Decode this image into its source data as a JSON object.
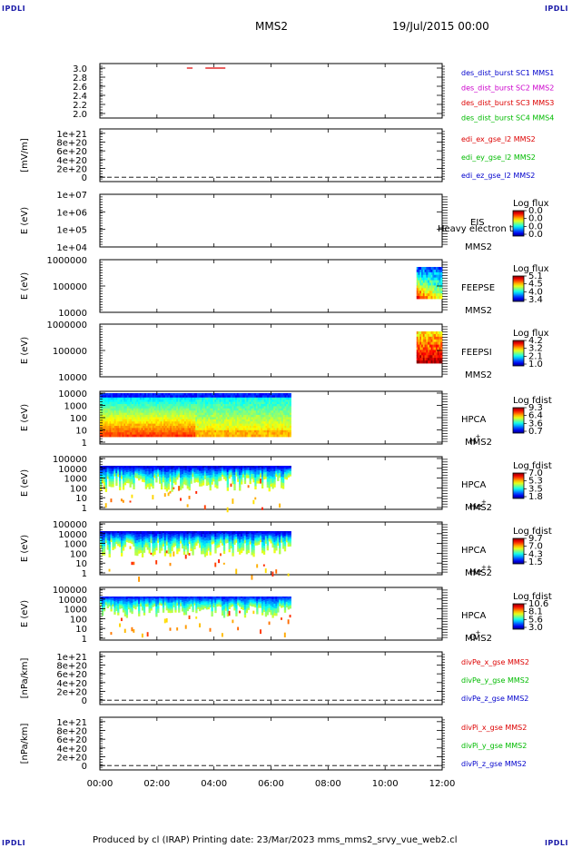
{
  "corners": {
    "tl": "IPDLI",
    "tr": "IPDLI",
    "bl": "IPDLI",
    "br": "IPDLI"
  },
  "header": {
    "title": "MMS2",
    "date": "19/Jul/2015 00:00"
  },
  "footer": {
    "text": "Produced by cl (IRAP)    Printing date: 23/Mar/2023    mms_mms2_srvy_vue_web2.cl"
  },
  "x_axis": {
    "ticks": [
      "00:00",
      "02:00",
      "04:00",
      "06:00",
      "08:00",
      "10:00",
      "12:00"
    ],
    "range_hours": [
      0,
      12
    ]
  },
  "chart_data": [
    {
      "type": "line",
      "id": "p1",
      "yticks": [
        "3.0",
        "2.8",
        "2.6",
        "2.4",
        "2.2",
        "2.0"
      ],
      "ylim": [
        1.9,
        3.1
      ],
      "ylabel": "",
      "legend": [
        {
          "text": "des_dist_burst SC1 MMS1",
          "color": "#0000cc"
        },
        {
          "text": "des_dist_burst SC2 MMS2",
          "color": "#cc00cc"
        },
        {
          "text": "des_dist_burst SC3 MMS3",
          "color": "#dd0000"
        },
        {
          "text": "des_dist_burst SC4 MMS4",
          "color": "#00bb00"
        }
      ],
      "segments": [
        {
          "x": [
            3.05,
            3.25
          ],
          "y": 3.0,
          "color": "#dd0000"
        },
        {
          "x": [
            3.7,
            4.4
          ],
          "y": 3.0,
          "color": "#dd0000"
        }
      ]
    },
    {
      "type": "line",
      "id": "p2",
      "ylabel": "[mV/m]",
      "yticks": [
        "1e+21",
        "8e+20",
        "6e+20",
        "4e+20",
        "2e+20",
        "0"
      ],
      "ylim": [
        -1e+20,
        1.1e+21
      ],
      "legend": [
        {
          "text": "edi_ex_gse_l2 MMS2",
          "color": "#dd0000"
        },
        {
          "text": "edi_ey_gse_l2 MMS2",
          "color": "#00bb00"
        },
        {
          "text": "edi_ez_gse_l2 MMS2",
          "color": "#0000cc"
        }
      ],
      "zero_line": true
    },
    {
      "type": "heatmap",
      "id": "p3",
      "ylabel": "E (eV)",
      "yticks": [
        "1e+07",
        "1e+06",
        "1e+05",
        "1e+04"
      ],
      "instrument": "EIS",
      "overlap_text": "Heavy electron to",
      "spacecraft": "MMS2",
      "cbar_title": "Log flux",
      "cbar_ticks": [
        "0.0",
        "0.0",
        "0.0",
        "0.0"
      ],
      "blocks": []
    },
    {
      "type": "heatmap",
      "id": "p4",
      "ylabel": "E (eV)",
      "yticks": [
        "1000000",
        "100000",
        "10000"
      ],
      "instrument": "FEEPSE",
      "spacecraft": "MMS2",
      "cbar_title": "Log flux",
      "cbar_ticks": [
        "5.1",
        "4.5",
        "4.0",
        "3.4"
      ],
      "blocks": [
        {
          "x": [
            11.1,
            12.0
          ],
          "kind": "feepse"
        }
      ]
    },
    {
      "type": "heatmap",
      "id": "p5",
      "ylabel": "E (eV)",
      "yticks": [
        "1000000",
        "100000",
        "10000"
      ],
      "instrument": "FEEPSI",
      "spacecraft": "MMS2",
      "cbar_title": "Log flux",
      "cbar_ticks": [
        "4.2",
        "3.2",
        "2.1",
        "1.0"
      ],
      "blocks": [
        {
          "x": [
            11.1,
            12.0
          ],
          "kind": "feepsi"
        }
      ]
    },
    {
      "type": "heatmap",
      "id": "p6",
      "ylabel": "E (eV)",
      "yticks": [
        "10000",
        "1000",
        "100",
        "10",
        "1"
      ],
      "instrument": "HPCA",
      "spacecraft": "MMS2",
      "species": "H",
      "species_sup": "+",
      "cbar_title": "Log fdist",
      "cbar_ticks": [
        "9.3",
        "6.4",
        "3.6",
        "0.7"
      ],
      "blocks": [
        {
          "x": [
            0,
            6.7
          ],
          "kind": "hplus"
        }
      ]
    },
    {
      "type": "heatmap",
      "id": "p7",
      "ylabel": "E (eV)",
      "yticks": [
        "100000",
        "10000",
        "1000",
        "100",
        "10",
        "1"
      ],
      "instrument": "HPCA",
      "spacecraft": "MMS2",
      "species": "He",
      "species_sup": "+",
      "cbar_title": "Log fdist",
      "cbar_ticks": [
        "7.0",
        "5.3",
        "3.5",
        "1.8"
      ],
      "blocks": [
        {
          "x": [
            0,
            6.7
          ],
          "kind": "heplus"
        }
      ]
    },
    {
      "type": "heatmap",
      "id": "p8",
      "ylabel": "E (eV)",
      "yticks": [
        "100000",
        "10000",
        "1000",
        "100",
        "10",
        "1"
      ],
      "instrument": "HPCA",
      "spacecraft": "MMS2",
      "species": "He",
      "species_sup": "++",
      "cbar_title": "Log fdist",
      "cbar_ticks": [
        "9.7",
        "7.0",
        "4.3",
        "1.5"
      ],
      "blocks": [
        {
          "x": [
            0,
            6.7
          ],
          "kind": "heplusplus"
        }
      ]
    },
    {
      "type": "heatmap",
      "id": "p9",
      "ylabel": "E (eV)",
      "yticks": [
        "100000",
        "10000",
        "1000",
        "100",
        "10",
        "1"
      ],
      "instrument": "HPCA",
      "spacecraft": "MMS2",
      "species": "O",
      "species_sup": "+",
      "cbar_title": "Log fdist",
      "cbar_ticks": [
        "10.6",
        "8.1",
        "5.6",
        "3.0"
      ],
      "blocks": [
        {
          "x": [
            0,
            6.7
          ],
          "kind": "oplus"
        }
      ]
    },
    {
      "type": "line",
      "id": "p10",
      "ylabel": "[nPa/km]",
      "yticks": [
        "1e+21",
        "8e+20",
        "6e+20",
        "4e+20",
        "2e+20",
        "0"
      ],
      "ylim": [
        -1e+20,
        1.1e+21
      ],
      "legend": [
        {
          "text": "divPe_x_gse MMS2",
          "color": "#dd0000"
        },
        {
          "text": "divPe_y_gse MMS2",
          "color": "#00bb00"
        },
        {
          "text": "divPe_z_gse MMS2",
          "color": "#0000cc"
        }
      ],
      "zero_line": true
    },
    {
      "type": "line",
      "id": "p11",
      "ylabel": "[nPa/km]",
      "yticks": [
        "1e+21",
        "8e+20",
        "6e+20",
        "4e+20",
        "2e+20",
        "0"
      ],
      "ylim": [
        -1e+20,
        1.1e+21
      ],
      "legend": [
        {
          "text": "divPi_x_gse MMS2",
          "color": "#dd0000"
        },
        {
          "text": "divPi_y_gse MMS2",
          "color": "#00bb00"
        },
        {
          "text": "divPi_z_gse MMS2",
          "color": "#0000cc"
        }
      ],
      "zero_line": true
    }
  ]
}
